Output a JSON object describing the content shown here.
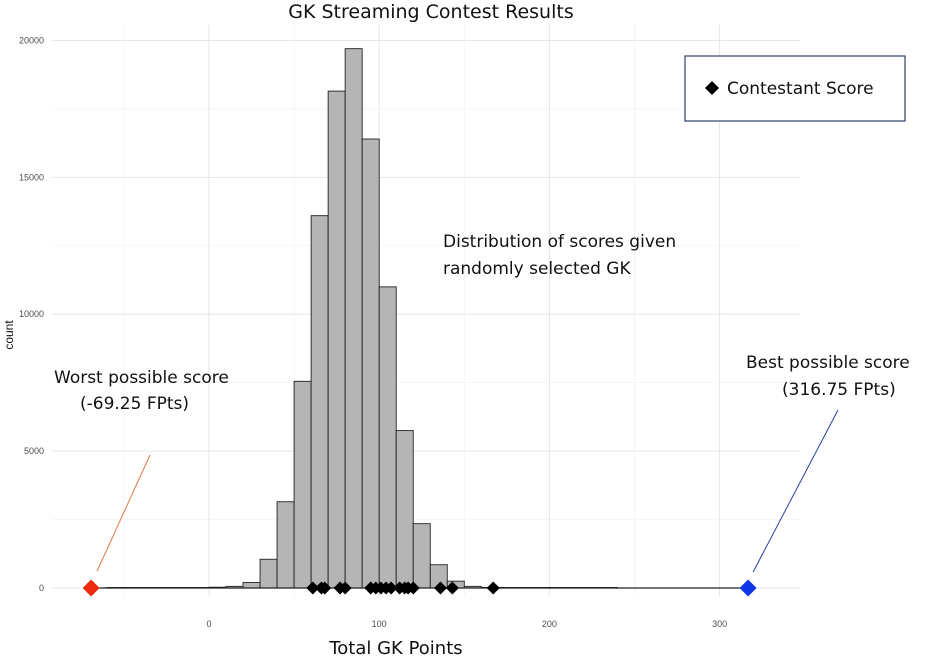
{
  "chart_data": {
    "type": "bar",
    "title": "GK Streaming Contest Results",
    "xlabel": "Total GK Points",
    "ylabel": "count",
    "xlim": [
      -80,
      330
    ],
    "ylim": [
      0,
      20500
    ],
    "x_ticks": [
      0,
      100,
      200,
      300
    ],
    "y_ticks": [
      0,
      5000,
      10000,
      15000,
      20000
    ],
    "grid": true,
    "bin_width": 10,
    "bins": [
      {
        "start": -60,
        "count": 20
      },
      {
        "start": -50,
        "count": 20
      },
      {
        "start": -40,
        "count": 20
      },
      {
        "start": -30,
        "count": 20
      },
      {
        "start": -20,
        "count": 20
      },
      {
        "start": -10,
        "count": 20
      },
      {
        "start": 0,
        "count": 30
      },
      {
        "start": 10,
        "count": 60
      },
      {
        "start": 20,
        "count": 200
      },
      {
        "start": 30,
        "count": 1050
      },
      {
        "start": 40,
        "count": 3150
      },
      {
        "start": 50,
        "count": 7550
      },
      {
        "start": 60,
        "count": 13600
      },
      {
        "start": 70,
        "count": 18150
      },
      {
        "start": 80,
        "count": 19700
      },
      {
        "start": 90,
        "count": 16400
      },
      {
        "start": 100,
        "count": 11000
      },
      {
        "start": 110,
        "count": 5750
      },
      {
        "start": 120,
        "count": 2350
      },
      {
        "start": 130,
        "count": 850
      },
      {
        "start": 140,
        "count": 250
      },
      {
        "start": 150,
        "count": 60
      },
      {
        "start": 160,
        "count": 20
      },
      {
        "start": 170,
        "count": 20
      },
      {
        "start": 180,
        "count": 20
      },
      {
        "start": 190,
        "count": 20
      },
      {
        "start": 200,
        "count": 20
      },
      {
        "start": 210,
        "count": 20
      },
      {
        "start": 220,
        "count": 20
      },
      {
        "start": 230,
        "count": 20
      }
    ],
    "contestant_scores": [
      61,
      66,
      68,
      77,
      80,
      95,
      98,
      101,
      104,
      107,
      112,
      115,
      117,
      120,
      136,
      143,
      167
    ],
    "worst_score": -69.25,
    "best_score": 316.75,
    "legend": {
      "label": "Contestant Score",
      "position": "top-right"
    },
    "annotations": {
      "distribution_line1": "Distribution of scores given",
      "distribution_line2": "randomly selected GK",
      "worst_line1": "Worst possible score",
      "worst_line2": "(-69.25 FPts)",
      "best_line1": "Best possible score",
      "best_line2": "(316.75 FPts)"
    },
    "colors": {
      "bar_fill": "#b5b5b5",
      "bar_stroke": "#222222",
      "grid": "#e6e6e6",
      "contestant_marker": "#000000",
      "worst_marker": "#ef2a0f",
      "best_marker": "#1035e6",
      "worst_line": "#e07a45",
      "best_line": "#2b3f9e",
      "legend_border": "#2f3f66"
    }
  }
}
